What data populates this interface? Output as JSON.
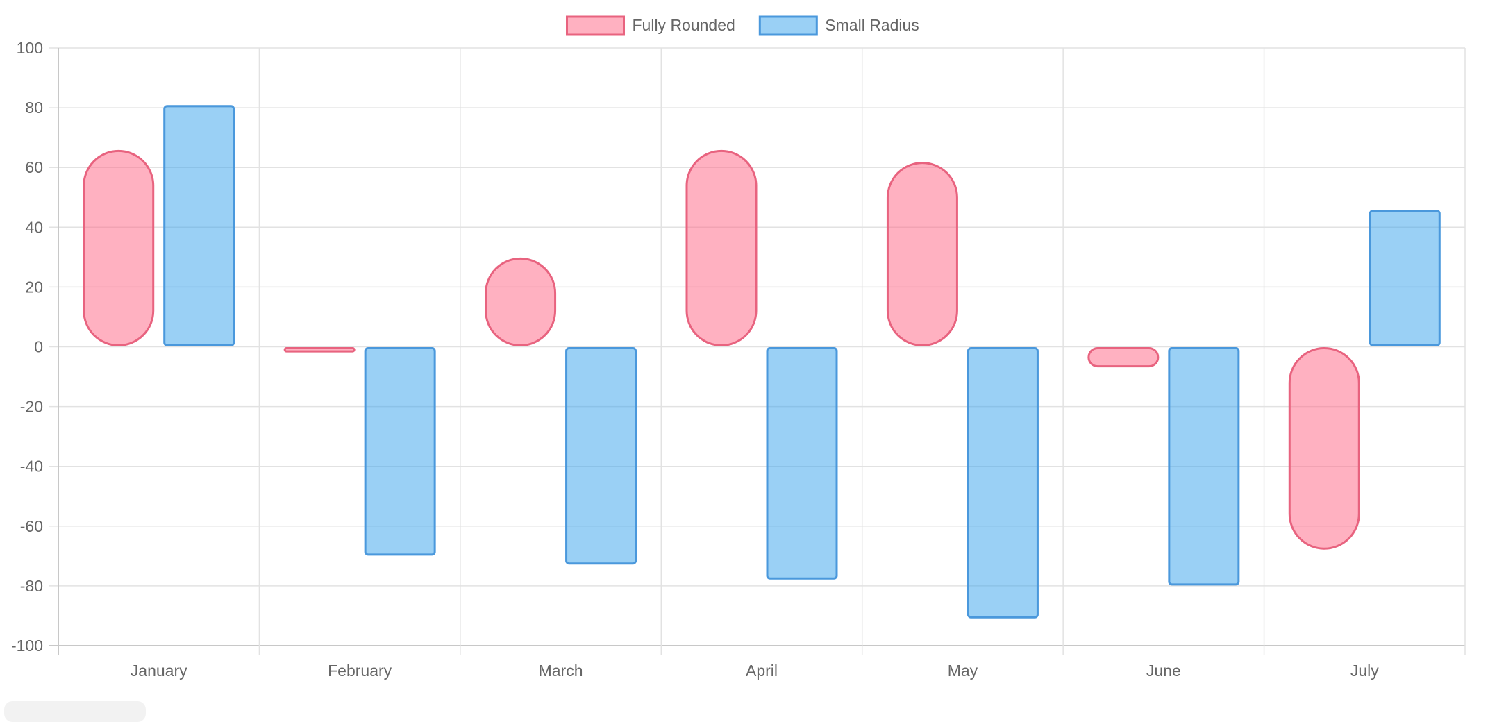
{
  "colors": {
    "fully_rounded_fill": "rgba(255,99,132,0.5)",
    "fully_rounded_stroke": "#e8637f",
    "small_radius_fill": "rgba(54,162,235,0.5)",
    "small_radius_stroke": "#4a98dc",
    "grid": "#e2e2e2",
    "axis": "#c8c8c8",
    "text": "#666666"
  },
  "chart_data": {
    "type": "bar",
    "title": "",
    "xlabel": "",
    "ylabel": "",
    "ylim": [
      -100,
      100
    ],
    "yticks": [
      100,
      80,
      60,
      40,
      20,
      0,
      -20,
      -40,
      -60,
      -80,
      -100
    ],
    "grid": true,
    "legend_position": "top-center",
    "categories": [
      "January",
      "February",
      "March",
      "April",
      "May",
      "June",
      "July"
    ],
    "series": [
      {
        "name": "Fully Rounded",
        "style": "fully-rounded",
        "values": [
          66,
          -2,
          30,
          66,
          62,
          -7,
          -68
        ]
      },
      {
        "name": "Small Radius",
        "style": "small-radius",
        "values": [
          81,
          -70,
          -73,
          -78,
          -91,
          -80,
          46
        ]
      }
    ]
  }
}
